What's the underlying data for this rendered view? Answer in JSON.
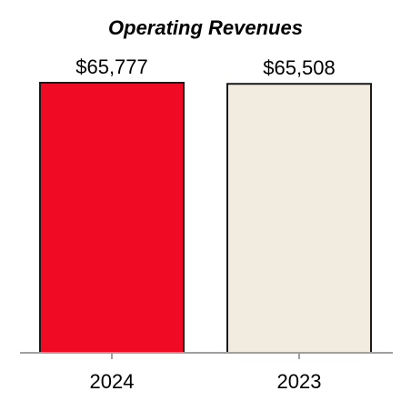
{
  "chart_data": {
    "type": "bar",
    "title": "Operating Revenues",
    "categories": [
      "2024",
      "2023"
    ],
    "values": [
      65777,
      65508
    ],
    "value_labels": [
      "$65,777",
      "$65,508"
    ],
    "colors": [
      "#F00A23",
      "#F2ECE0"
    ],
    "bar_outline": "#1A1A1A",
    "axis_color": "#A0A0A0",
    "xlabel": "",
    "ylabel": "",
    "ylim": [
      0,
      67000
    ],
    "grid": false,
    "legend": "none"
  }
}
